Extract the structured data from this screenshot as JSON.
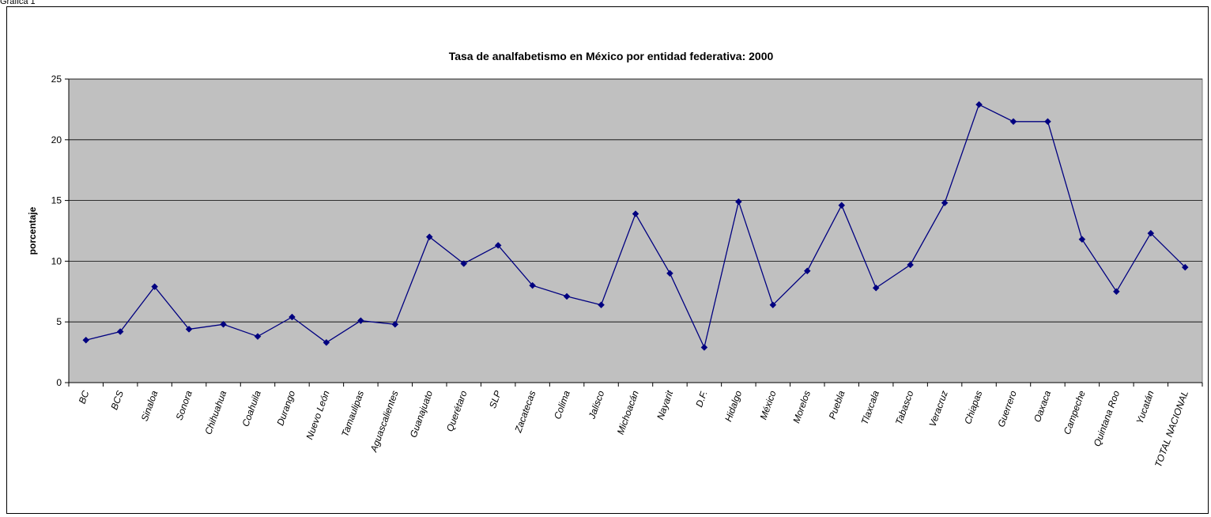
{
  "page_label": "Gráfica 1",
  "chart_data": {
    "type": "line",
    "title": "Tasa de analfabetismo en México por entidad federativa: 2000",
    "xlabel": "",
    "ylabel": "porcentaje",
    "ylim": [
      0,
      25
    ],
    "yticks": [
      0,
      5,
      10,
      15,
      20,
      25
    ],
    "grid": true,
    "legend": "none",
    "colors": {
      "plot_background": "#c0c0c0",
      "line": "#000080",
      "marker": "#000080",
      "gridline": "#000000"
    },
    "categories": [
      "BC",
      "BCS",
      "Sinaloa",
      "Sonora",
      "Chihuahua",
      "Coahuila",
      "Durango",
      "Nuevo León",
      "Tamaulipas",
      "Aguascalientes",
      "Guanajuato",
      "Querétaro",
      "SLP",
      "Zacatecas",
      "Colima",
      "Jalisco",
      "Michoacán",
      "Nayarit",
      "D.F.",
      "Hidalgo",
      "México",
      "Morelos",
      "Puebla",
      "Tlaxcala",
      "Tabasco",
      "Veracruz",
      "Chiapas",
      "Guerrero",
      "Oaxaca",
      "Campeche",
      "Quintana Roo",
      "Yucatán",
      "TOTAL NACIONAL"
    ],
    "values": [
      3.5,
      4.2,
      7.9,
      4.4,
      4.8,
      3.8,
      5.4,
      3.3,
      5.1,
      4.8,
      12.0,
      9.8,
      11.3,
      8.0,
      7.1,
      6.4,
      13.9,
      9.0,
      2.9,
      14.9,
      6.4,
      9.2,
      14.6,
      7.8,
      9.7,
      14.8,
      22.9,
      21.5,
      21.5,
      11.8,
      7.5,
      12.3,
      9.5
    ]
  }
}
